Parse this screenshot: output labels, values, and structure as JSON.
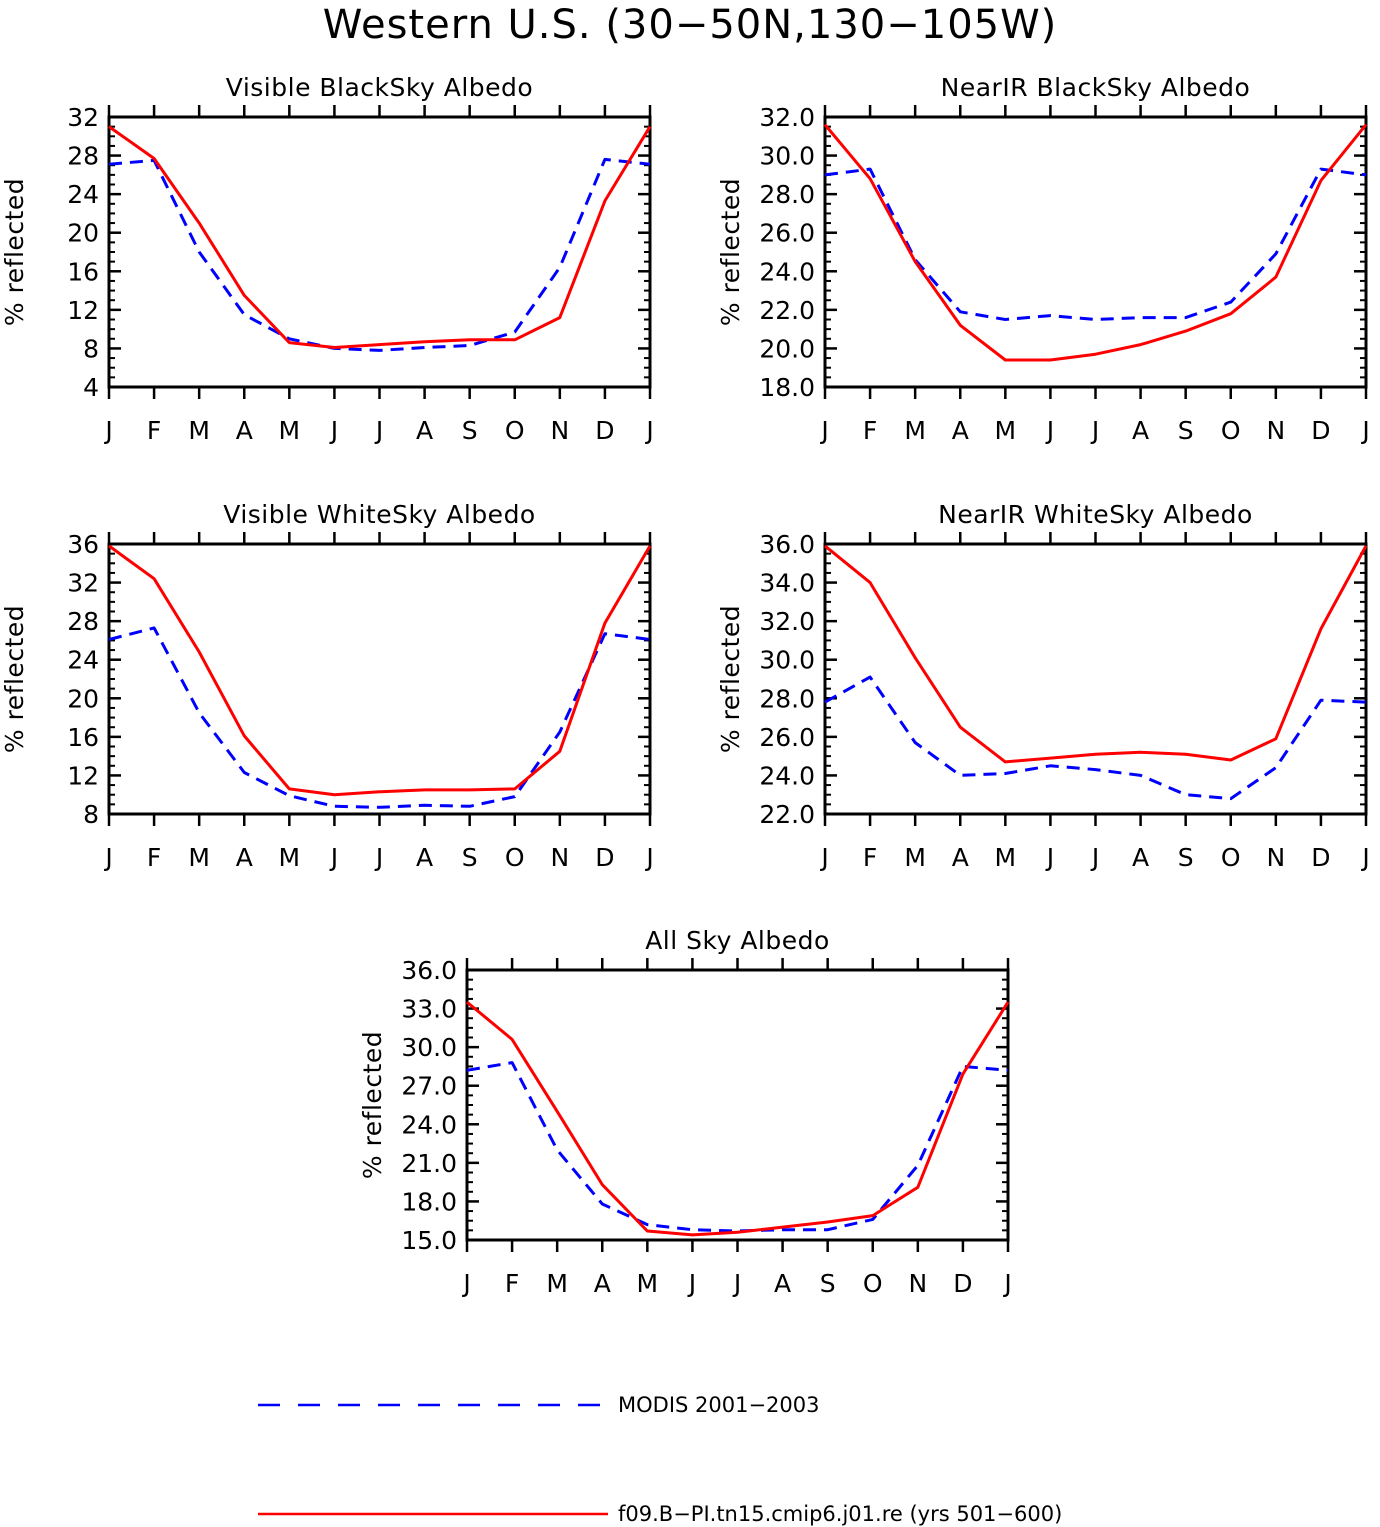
{
  "figure": {
    "title": "Western U.S. (30−50N,130−105W)"
  },
  "colors": {
    "modis": "#0000ff",
    "model": "#ff0000",
    "axes": "#000000"
  },
  "legend": [
    {
      "key": "modis",
      "label": "MODIS 2001−2003",
      "style": "dashed"
    },
    {
      "key": "model",
      "label": "f09.B−PI.tn15.cmip6.j01.re (yrs 501−600)",
      "style": "solid"
    }
  ],
  "chart_data": [
    {
      "type": "line",
      "title": "Visible BlackSky Albedo",
      "ylabel": "% reflected",
      "categories": [
        "J",
        "F",
        "M",
        "A",
        "M",
        "J",
        "J",
        "A",
        "S",
        "O",
        "N",
        "D",
        "J"
      ],
      "ylim": [
        4,
        32
      ],
      "yticks": [
        "4",
        "8",
        "12",
        "16",
        "20",
        "24",
        "28",
        "32"
      ],
      "series": [
        {
          "name": "MODIS 2001−2003",
          "color": "#0000ff",
          "dash": true,
          "values": [
            27.1,
            27.5,
            18.0,
            11.5,
            9.0,
            8.0,
            7.8,
            8.1,
            8.3,
            9.7,
            16.4,
            27.6,
            27.1
          ]
        },
        {
          "name": "f09.B−PI.tn15.cmip6.j01.re (yrs 501−600)",
          "color": "#ff0000",
          "dash": false,
          "values": [
            31.0,
            27.7,
            21.0,
            13.5,
            8.6,
            8.1,
            8.4,
            8.7,
            8.9,
            8.9,
            11.2,
            23.3,
            31.0
          ]
        }
      ]
    },
    {
      "type": "line",
      "title": "NearIR BlackSky Albedo",
      "ylabel": "% reflected",
      "categories": [
        "J",
        "F",
        "M",
        "A",
        "M",
        "J",
        "J",
        "A",
        "S",
        "O",
        "N",
        "D",
        "J"
      ],
      "ylim": [
        18,
        32
      ],
      "yticks": [
        "18.0",
        "20.0",
        "22.0",
        "24.0",
        "26.0",
        "28.0",
        "30.0",
        "32.0"
      ],
      "series": [
        {
          "name": "MODIS 2001−2003",
          "color": "#0000ff",
          "dash": true,
          "values": [
            29.0,
            29.3,
            24.6,
            21.9,
            21.5,
            21.7,
            21.5,
            21.6,
            21.6,
            22.4,
            24.9,
            29.3,
            29.0
          ]
        },
        {
          "name": "f09.B−PI.tn15.cmip6.j01.re (yrs 501−600)",
          "color": "#ff0000",
          "dash": false,
          "values": [
            31.6,
            28.8,
            24.5,
            21.2,
            19.4,
            19.4,
            19.7,
            20.2,
            20.9,
            21.8,
            23.7,
            28.7,
            31.6
          ]
        }
      ]
    },
    {
      "type": "line",
      "title": "Visible WhiteSky Albedo",
      "ylabel": "% reflected",
      "categories": [
        "J",
        "F",
        "M",
        "A",
        "M",
        "J",
        "J",
        "A",
        "S",
        "O",
        "N",
        "D",
        "J"
      ],
      "ylim": [
        8,
        36
      ],
      "yticks": [
        "8",
        "12",
        "16",
        "20",
        "24",
        "28",
        "32",
        "36"
      ],
      "series": [
        {
          "name": "MODIS 2001−2003",
          "color": "#0000ff",
          "dash": true,
          "values": [
            26.1,
            27.3,
            18.5,
            12.3,
            9.9,
            8.8,
            8.7,
            8.9,
            8.8,
            9.8,
            16.5,
            26.7,
            26.1
          ]
        },
        {
          "name": "f09.B−PI.tn15.cmip6.j01.re (yrs 501−600)",
          "color": "#ff0000",
          "dash": false,
          "values": [
            35.8,
            32.4,
            24.8,
            16.1,
            10.6,
            10.0,
            10.3,
            10.5,
            10.5,
            10.6,
            14.5,
            27.8,
            35.8
          ]
        }
      ]
    },
    {
      "type": "line",
      "title": "NearIR WhiteSky Albedo",
      "ylabel": "% reflected",
      "categories": [
        "J",
        "F",
        "M",
        "A",
        "M",
        "J",
        "J",
        "A",
        "S",
        "O",
        "N",
        "D",
        "J"
      ],
      "ylim": [
        22,
        36
      ],
      "yticks": [
        "22.0",
        "24.0",
        "26.0",
        "28.0",
        "30.0",
        "32.0",
        "34.0",
        "36.0"
      ],
      "series": [
        {
          "name": "MODIS 2001−2003",
          "color": "#0000ff",
          "dash": true,
          "values": [
            27.8,
            29.1,
            25.7,
            24.0,
            24.1,
            24.5,
            24.3,
            24.0,
            23.0,
            22.8,
            24.4,
            27.9,
            27.8
          ]
        },
        {
          "name": "f09.B−PI.tn15.cmip6.j01.re (yrs 501−600)",
          "color": "#ff0000",
          "dash": false,
          "values": [
            35.9,
            34.0,
            30.1,
            26.5,
            24.7,
            24.9,
            25.1,
            25.2,
            25.1,
            24.8,
            25.9,
            31.6,
            35.9
          ]
        }
      ]
    },
    {
      "type": "line",
      "title": "All Sky Albedo",
      "ylabel": "% reflected",
      "categories": [
        "J",
        "F",
        "M",
        "A",
        "M",
        "J",
        "J",
        "A",
        "S",
        "O",
        "N",
        "D",
        "J"
      ],
      "ylim": [
        15,
        36
      ],
      "yticks": [
        "15.0",
        "18.0",
        "21.0",
        "24.0",
        "27.0",
        "30.0",
        "33.0",
        "36.0"
      ],
      "series": [
        {
          "name": "MODIS 2001−2003",
          "color": "#0000ff",
          "dash": true,
          "values": [
            28.2,
            28.8,
            22.0,
            17.8,
            16.2,
            15.8,
            15.7,
            15.8,
            15.8,
            16.6,
            20.8,
            28.5,
            28.2
          ]
        },
        {
          "name": "f09.B−PI.tn15.cmip6.j01.re (yrs 501−600)",
          "color": "#ff0000",
          "dash": false,
          "values": [
            33.5,
            30.6,
            25.0,
            19.3,
            15.7,
            15.4,
            15.6,
            16.0,
            16.4,
            16.9,
            19.1,
            27.9,
            33.5
          ]
        }
      ]
    }
  ]
}
